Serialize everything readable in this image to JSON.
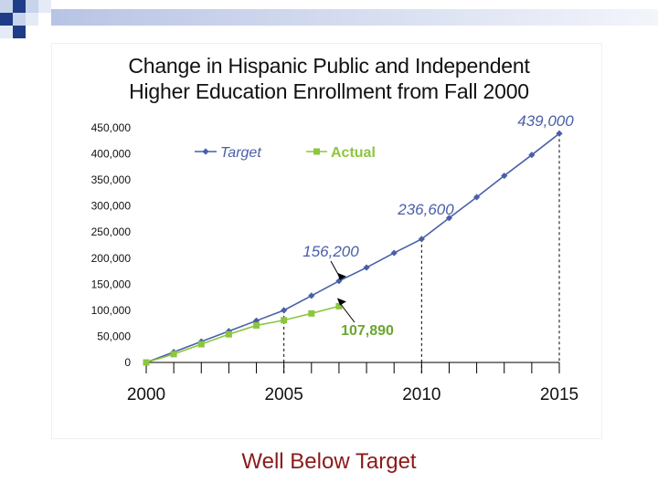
{
  "slide": {
    "title_line1": "Change in Hispanic Public and Independent",
    "title_line2": "Higher Education Enrollment from Fall 2000",
    "footer": "Well Below Target"
  },
  "colors": {
    "target": "#4a5fa8",
    "actual": "#8cc63f",
    "annotation_blue": "#4a5fa8",
    "annotation_green": "#6aa630",
    "footer": "#8b1a1a",
    "deco_blue": "#1f3c88"
  },
  "chart_data": {
    "type": "line",
    "title": "Change in Hispanic Public and Independent Higher Education Enrollment from Fall 2000",
    "xlabel": "",
    "ylabel": "",
    "xlim": [
      2000,
      2015
    ],
    "ylim": [
      0,
      450000
    ],
    "yticks": [
      0,
      50000,
      100000,
      150000,
      200000,
      250000,
      300000,
      350000,
      400000,
      450000
    ],
    "ytick_labels": [
      "0",
      "50,000",
      "100,000",
      "150,000",
      "200,000",
      "250,000",
      "300,000",
      "350,000",
      "400,000",
      "450,000"
    ],
    "xtick_labels": [
      {
        "x": 2000,
        "label": "2000"
      },
      {
        "x": 2005,
        "label": "2005"
      },
      {
        "x": 2010,
        "label": "2010"
      },
      {
        "x": 2015,
        "label": "2015"
      }
    ],
    "grid": false,
    "legend_position": "top-left",
    "series": [
      {
        "name": "Target",
        "marker": "diamond",
        "x": [
          2000,
          2001,
          2002,
          2003,
          2004,
          2005,
          2006,
          2007,
          2008,
          2009,
          2010,
          2011,
          2012,
          2013,
          2014,
          2015
        ],
        "values": [
          0,
          20000,
          40000,
          60000,
          80000,
          100000,
          128000,
          156200,
          182000,
          210000,
          236600,
          277000,
          317000,
          358000,
          398000,
          439000
        ]
      },
      {
        "name": "Actual",
        "marker": "square",
        "x": [
          2000,
          2001,
          2002,
          2003,
          2004,
          2005,
          2006,
          2007
        ],
        "values": [
          0,
          16000,
          35000,
          54000,
          71000,
          81000,
          94000,
          107890
        ]
      }
    ],
    "annotations": [
      {
        "text": "439,000",
        "x": 2015,
        "y": 439000,
        "series": "Target",
        "style": "label"
      },
      {
        "text": "236,600",
        "x": 2010,
        "y": 236600,
        "series": "Target",
        "style": "label"
      },
      {
        "text": "156,200",
        "x": 2007,
        "y": 156200,
        "series": "Target",
        "style": "arrow"
      },
      {
        "text": "107,890",
        "x": 2007,
        "y": 107890,
        "series": "Actual",
        "style": "arrow"
      }
    ],
    "reference_lines": [
      {
        "x": 2005,
        "style": "dashed"
      },
      {
        "x": 2010,
        "style": "dashed"
      },
      {
        "x": 2015,
        "style": "dashed"
      }
    ]
  }
}
